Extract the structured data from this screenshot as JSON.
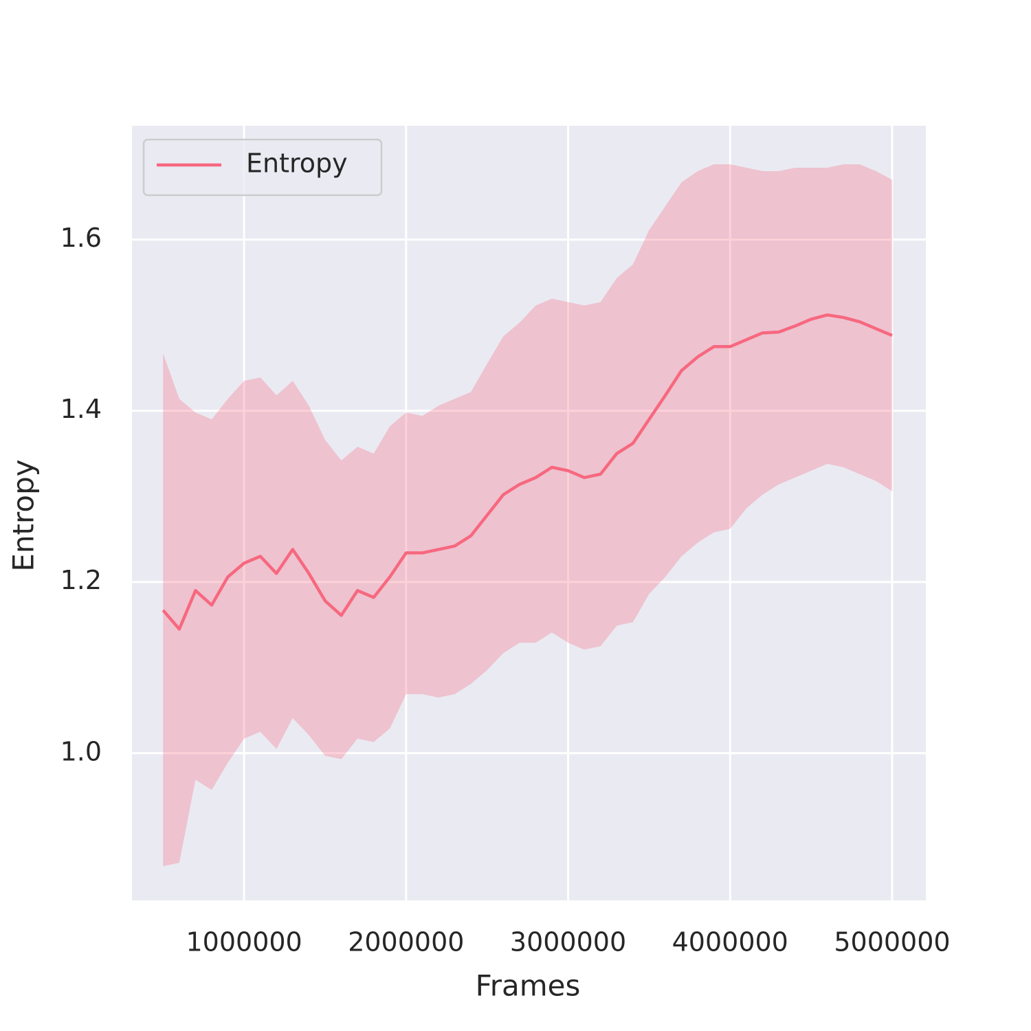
{
  "chart_data": {
    "type": "line",
    "xlabel": "Frames",
    "ylabel": "Entropy",
    "x": [
      500000,
      600000,
      700000,
      800000,
      900000,
      1000000,
      1100000,
      1200000,
      1300000,
      1400000,
      1500000,
      1600000,
      1700000,
      1800000,
      1900000,
      2000000,
      2100000,
      2200000,
      2300000,
      2400000,
      2500000,
      2600000,
      2700000,
      2800000,
      2900000,
      3000000,
      3100000,
      3200000,
      3300000,
      3400000,
      3500000,
      3600000,
      3700000,
      3800000,
      3900000,
      4000000,
      4100000,
      4200000,
      4300000,
      4400000,
      4500000,
      4600000,
      4700000,
      4800000,
      4900000,
      5000000
    ],
    "series": [
      {
        "name": "Entropy",
        "color": "#f7687f",
        "values": [
          1.167,
          1.145,
          1.19,
          1.173,
          1.206,
          1.222,
          1.23,
          1.21,
          1.238,
          1.21,
          1.178,
          1.161,
          1.19,
          1.182,
          1.206,
          1.234,
          1.234,
          1.238,
          1.242,
          1.254,
          1.278,
          1.302,
          1.314,
          1.322,
          1.334,
          1.33,
          1.322,
          1.326,
          1.35,
          1.362,
          1.39,
          1.418,
          1.447,
          1.463,
          1.475,
          1.475,
          1.483,
          1.491,
          1.492,
          1.499,
          1.507,
          1.512,
          1.509,
          1.504,
          1.496,
          1.488
        ],
        "upper": [
          1.467,
          1.414,
          1.398,
          1.39,
          1.414,
          1.435,
          1.439,
          1.418,
          1.435,
          1.406,
          1.366,
          1.342,
          1.358,
          1.35,
          1.382,
          1.398,
          1.394,
          1.406,
          1.414,
          1.422,
          1.455,
          1.487,
          1.503,
          1.523,
          1.531,
          1.527,
          1.523,
          1.527,
          1.555,
          1.571,
          1.611,
          1.639,
          1.667,
          1.68,
          1.688,
          1.688,
          1.684,
          1.68,
          1.68,
          1.684,
          1.684,
          1.684,
          1.688,
          1.688,
          1.68,
          1.67
        ],
        "lower": [
          0.868,
          0.872,
          0.969,
          0.957,
          0.989,
          1.017,
          1.025,
          1.005,
          1.041,
          1.021,
          0.997,
          0.993,
          1.017,
          1.013,
          1.029,
          1.069,
          1.069,
          1.065,
          1.069,
          1.081,
          1.097,
          1.117,
          1.129,
          1.129,
          1.141,
          1.129,
          1.121,
          1.125,
          1.149,
          1.153,
          1.186,
          1.206,
          1.23,
          1.246,
          1.258,
          1.262,
          1.286,
          1.302,
          1.314,
          1.322,
          1.33,
          1.338,
          1.334,
          1.326,
          1.318,
          1.306
        ]
      }
    ],
    "xlim": [
      308000,
      5208000
    ],
    "ylim": [
      0.828,
      1.733
    ],
    "xticks": [
      1000000,
      2000000,
      3000000,
      4000000,
      5000000
    ],
    "yticks": [
      {
        "value": 1,
        "label": "1.0"
      },
      1.2,
      1.4,
      1.6
    ],
    "grid": true,
    "legend": "upper left"
  }
}
